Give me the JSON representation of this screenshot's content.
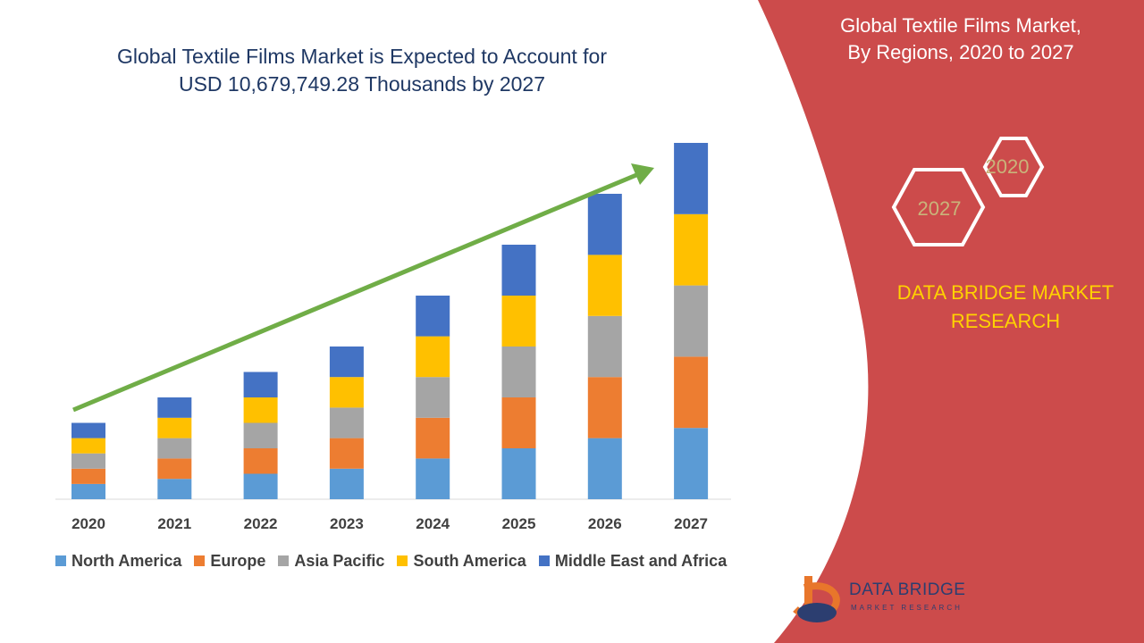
{
  "header": {
    "line1": "Global  Textile Films Market  is Expected to Account for",
    "line2": "USD 10,679,749.28 Thousands  by 2027"
  },
  "sidebar": {
    "title_line1": "Global  Textile Films Market,",
    "title_line2": "By Regions, 2020 to 2027",
    "hex_top_label": "2020",
    "hex_bottom_label": "2027",
    "brand_line1": "DATA BRIDGE MARKET",
    "brand_line2": "RESEARCH",
    "logo_name": "DATA BRIDGE",
    "logo_tagline": "MARKET RESEARCH"
  },
  "colors": {
    "panel": "#cc4b4b",
    "accent": "#ffd200",
    "trend_arrow": "#70ad47",
    "hexagon_text": "#c9b47a"
  },
  "chart_data": {
    "type": "bar",
    "stacked": true,
    "categories": [
      "2020",
      "2021",
      "2022",
      "2023",
      "2024",
      "2025",
      "2026",
      "2027"
    ],
    "series": [
      {
        "name": "North America",
        "color": "#5b9bd5",
        "values": [
          0.3,
          0.4,
          0.5,
          0.6,
          0.8,
          1.0,
          1.2,
          1.4
        ]
      },
      {
        "name": "Europe",
        "color": "#ed7d31",
        "values": [
          0.3,
          0.4,
          0.5,
          0.6,
          0.8,
          1.0,
          1.2,
          1.4
        ]
      },
      {
        "name": "Asia Pacific",
        "color": "#a5a5a5",
        "values": [
          0.3,
          0.4,
          0.5,
          0.6,
          0.8,
          1.0,
          1.2,
          1.4
        ]
      },
      {
        "name": "South America",
        "color": "#ffc000",
        "values": [
          0.3,
          0.4,
          0.5,
          0.6,
          0.8,
          1.0,
          1.2,
          1.4
        ]
      },
      {
        "name": "Middle East and Africa",
        "color": "#4472c4",
        "values": [
          0.3,
          0.4,
          0.5,
          0.6,
          0.8,
          1.0,
          1.2,
          1.4
        ]
      }
    ],
    "ylim": [
      0,
      7
    ],
    "grid": false,
    "legend_position": "bottom",
    "trend_arrow": true
  }
}
